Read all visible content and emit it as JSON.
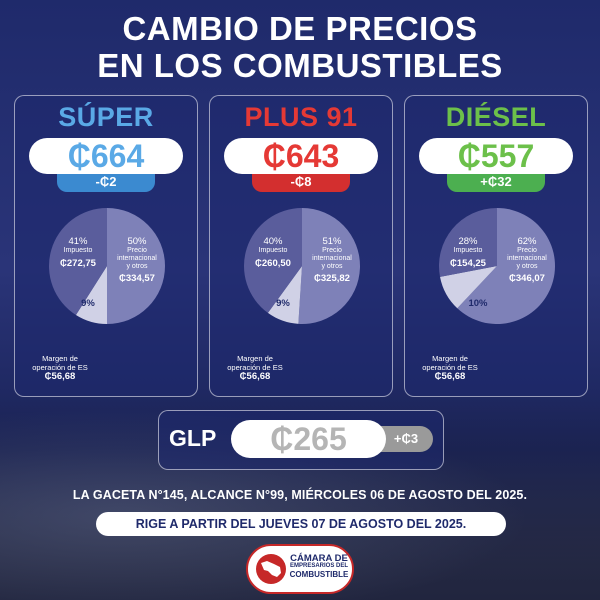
{
  "title": {
    "line1": "CAMBIO DE PRECIOS",
    "line2": "EN LOS COMBUSTIBLES"
  },
  "fuels": [
    {
      "name": "SÚPER",
      "price": "₵664",
      "change": "-₵2",
      "name_color": "#5aa9e6",
      "change_color": "#3b8ad0",
      "impuesto_pct": "41%",
      "impuesto_label": "Impuesto",
      "impuesto_value": "₵272,75",
      "precio_pct": "50%",
      "precio_label_1": "Precio",
      "precio_label_2": "internacional",
      "precio_label_3": "y otros",
      "precio_value": "₵334,57",
      "margin_pct": "9%",
      "margin_label_1": "Margen de",
      "margin_label_2": "operación de ES",
      "margin_value": "₵56,68",
      "shares": [
        41,
        50,
        9
      ]
    },
    {
      "name": "PLUS 91",
      "price": "₵643",
      "change": "-₵8",
      "name_color": "#e53935",
      "change_color": "#d32f2f",
      "impuesto_pct": "40%",
      "impuesto_label": "Impuesto",
      "impuesto_value": "₵260,50",
      "precio_pct": "51%",
      "precio_label_1": "Precio",
      "precio_label_2": "internacional",
      "precio_label_3": "y otros",
      "precio_value": "₵325,82",
      "margin_pct": "9%",
      "margin_label_1": "Margen de",
      "margin_label_2": "operación de ES",
      "margin_value": "₵56,68",
      "shares": [
        40,
        51,
        9
      ]
    },
    {
      "name": "DIÉSEL",
      "price": "₵557",
      "change": "+₵32",
      "name_color": "#6cc04a",
      "change_color": "#4caf50",
      "impuesto_pct": "28%",
      "impuesto_label": "Impuesto",
      "impuesto_value": "₵154,25",
      "precio_pct": "62%",
      "precio_label_1": "Precio",
      "precio_label_2": "internacional",
      "precio_label_3": "y otros",
      "precio_value": "₵346,07",
      "margin_pct": "10%",
      "margin_label_1": "Margen de",
      "margin_label_2": "operación de ES",
      "margin_value": "₵56,68",
      "shares": [
        28,
        62,
        10
      ]
    }
  ],
  "glp": {
    "name": "GLP",
    "price": "₵265",
    "change": "+₵3"
  },
  "gaceta": "LA GACETA N°145, ALCANCE N°99, MIÉRCOLES 06 DE AGOSTO DEL 2025.",
  "rige": "RIGE A PARTIR DEL JUEVES 07 DE AGOSTO DEL 2025.",
  "logo": {
    "line1": "CÁMARA DE",
    "line2": "EMPRESARIOS DEL",
    "line3": "COMBUSTIBLE"
  },
  "colors": {
    "impuesto": "#5a5d9c",
    "precio": "#7e81b8",
    "margin": "#d0d1e6"
  }
}
